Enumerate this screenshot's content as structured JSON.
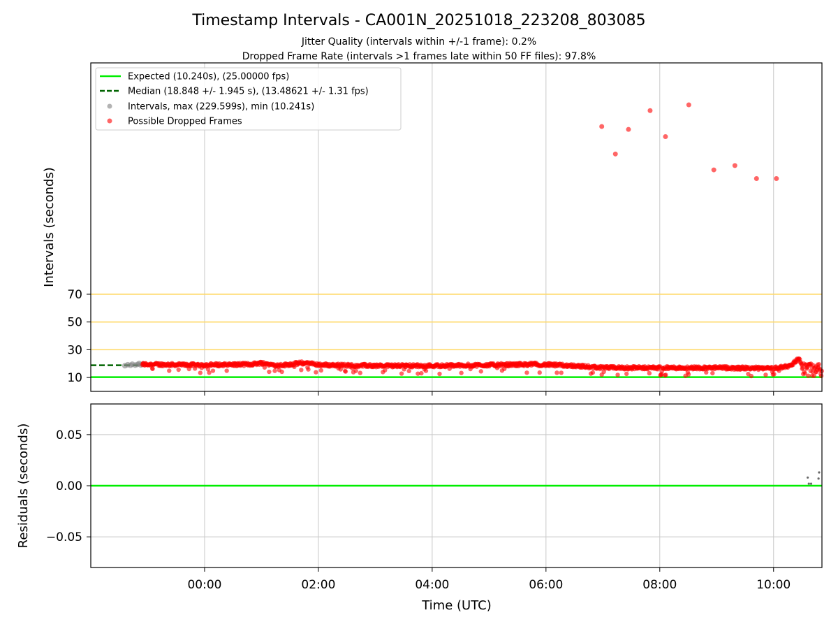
{
  "title": "Timestamp Intervals - CA001N_20251018_223208_803085",
  "subtitle_lines": [
    "Jitter Quality (intervals within +/-1 frame): 0.2%",
    "Dropped Frame Rate (intervals >1 frames late within 50 FF files): 97.8%"
  ],
  "colors": {
    "expected": "#00ee00",
    "median": "#006400",
    "intervals": "#808080",
    "dropped": "#ff0000",
    "threshold": "#ffd966",
    "grid": "#c8c8c8"
  },
  "chart_data": [
    {
      "type": "scatter",
      "ylabel": "Intervals (seconds)",
      "y_ticks": [
        10,
        30,
        50,
        70
      ],
      "x_ticks": [
        "00:00",
        "02:00",
        "04:00",
        "06:00",
        "08:00",
        "10:00"
      ],
      "x_tick_hours": [
        0,
        2,
        4,
        6,
        8,
        10
      ],
      "xlim_hours": [
        -2.0,
        10.85
      ],
      "ylim_break": {
        "visible_range": [
          0,
          70
        ],
        "compressed_range": [
          70,
          230
        ]
      },
      "grid": "vertical",
      "threshold_lines": [
        30,
        50,
        70
      ],
      "legend": {
        "placement": "top-left",
        "entries": [
          "Expected (10.240s), (25.00000 fps)",
          "Median (18.848 +/- 1.945 s), (13.48621 +/- 1.31 fps)",
          "Intervals, max (229.599s), min (10.241s)",
          "Possible Dropped Frames"
        ]
      },
      "expected_value": 10.24,
      "median_value": 18.848,
      "median_range_hours": [
        -2.0,
        -0.2
      ],
      "outliers": [
        {
          "t": 6.98,
          "y": 186
        },
        {
          "t": 7.22,
          "y": 167
        },
        {
          "t": 7.45,
          "y": 184
        },
        {
          "t": 7.83,
          "y": 197
        },
        {
          "t": 8.1,
          "y": 179
        },
        {
          "t": 8.51,
          "y": 201
        },
        {
          "t": 8.95,
          "y": 156
        },
        {
          "t": 9.32,
          "y": 159
        },
        {
          "t": 9.7,
          "y": 150
        },
        {
          "t": 10.05,
          "y": 150
        }
      ],
      "gray_points": [
        {
          "t": -1.4,
          "y": 18.5
        },
        {
          "t": -1.35,
          "y": 19.2
        },
        {
          "t": -1.3,
          "y": 18.8
        },
        {
          "t": -1.27,
          "y": 19.6
        },
        {
          "t": -1.22,
          "y": 18.9
        },
        {
          "t": -1.18,
          "y": 19.4
        },
        {
          "t": -1.15,
          "y": 20.1
        },
        {
          "t": -1.12,
          "y": 19.0
        },
        {
          "t": -1.08,
          "y": 19.7
        }
      ],
      "trend_knots": [
        {
          "t": -1.1,
          "y": 19.5
        },
        {
          "t": 0.0,
          "y": 19.0
        },
        {
          "t": 0.8,
          "y": 19.5
        },
        {
          "t": 1.0,
          "y": 20.5
        },
        {
          "t": 1.3,
          "y": 18.5
        },
        {
          "t": 1.7,
          "y": 20.5
        },
        {
          "t": 2.1,
          "y": 19.0
        },
        {
          "t": 3.0,
          "y": 18.5
        },
        {
          "t": 4.0,
          "y": 18.5
        },
        {
          "t": 5.0,
          "y": 19.0
        },
        {
          "t": 5.8,
          "y": 19.5
        },
        {
          "t": 6.5,
          "y": 18.5
        },
        {
          "t": 7.0,
          "y": 17.0
        },
        {
          "t": 8.0,
          "y": 17.0
        },
        {
          "t": 9.0,
          "y": 17.0
        },
        {
          "t": 10.0,
          "y": 16.5
        },
        {
          "t": 10.3,
          "y": 18.5
        },
        {
          "t": 10.45,
          "y": 24.0
        },
        {
          "t": 10.52,
          "y": 16.0
        },
        {
          "t": 10.85,
          "y": 14.0
        }
      ]
    },
    {
      "type": "scatter",
      "xlabel": "Time (UTC)",
      "ylabel": "Residuals (seconds)",
      "ylim": [
        -0.08,
        0.08
      ],
      "y_ticks": [
        -0.05,
        0.0,
        0.05
      ],
      "y_tick_labels": [
        "−0.05",
        "0.00",
        "0.05"
      ],
      "x_ticks": [
        "00:00",
        "02:00",
        "04:00",
        "06:00",
        "08:00",
        "10:00"
      ],
      "x_tick_hours": [
        0,
        2,
        4,
        6,
        8,
        10
      ],
      "xlim_hours": [
        -2.0,
        10.85
      ],
      "grid": "both",
      "zero_line": 0.0,
      "points": [
        {
          "t": 10.6,
          "y": 0.008
        },
        {
          "t": 10.62,
          "y": 0.002
        },
        {
          "t": 10.66,
          "y": 0.002
        },
        {
          "t": 10.79,
          "y": 0.007
        },
        {
          "t": 10.8,
          "y": 0.013
        }
      ]
    }
  ]
}
